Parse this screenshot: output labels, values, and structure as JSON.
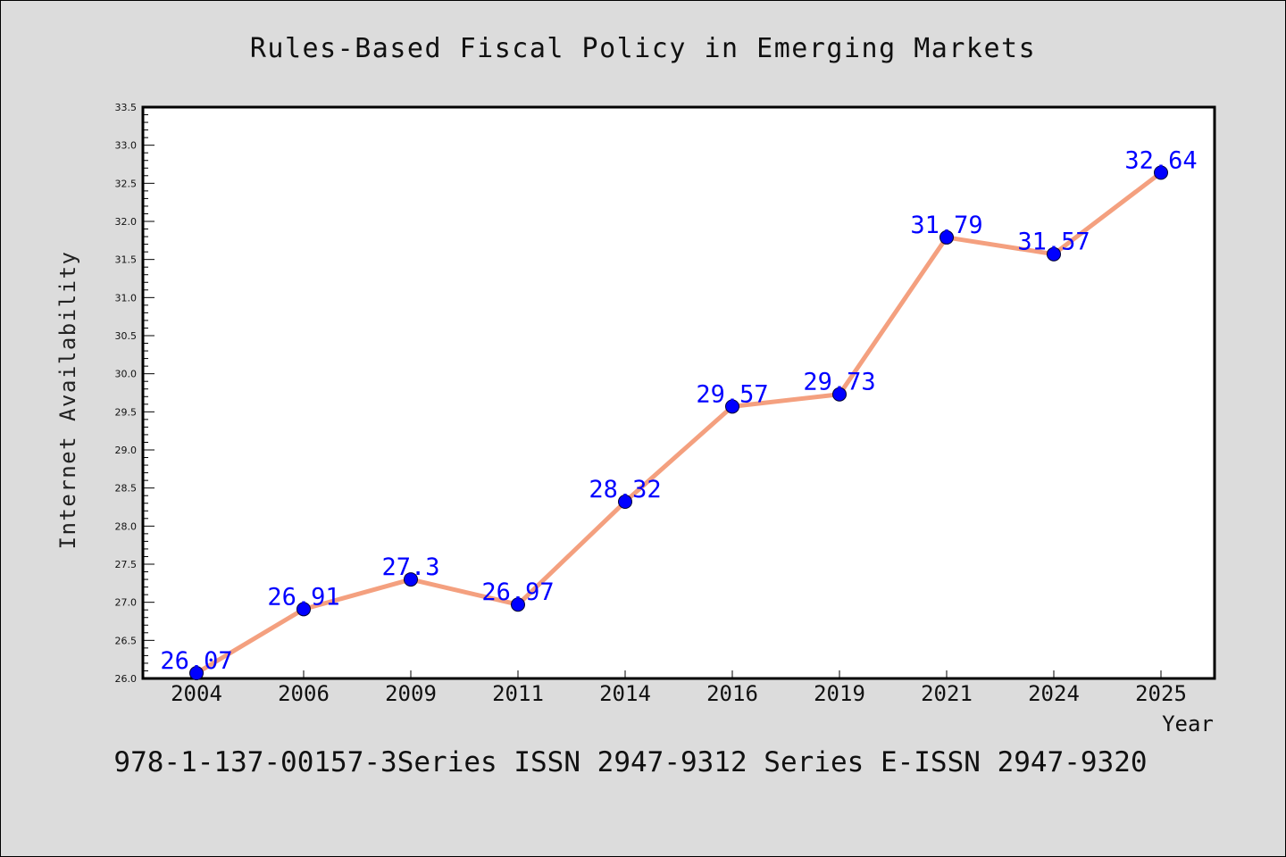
{
  "chart_data": {
    "type": "line",
    "title": "Rules-Based Fiscal Policy in Emerging Markets",
    "xlabel": "Year",
    "ylabel": "Internet Availability",
    "categories": [
      "2004",
      "2006",
      "2009",
      "2011",
      "2014",
      "2016",
      "2019",
      "2021",
      "2024",
      "2025"
    ],
    "series": [
      {
        "values": [
          26.07,
          26.91,
          27.3,
          26.97,
          28.32,
          29.57,
          29.73,
          31.79,
          31.57,
          32.64
        ],
        "labels": [
          "26.07",
          "26.91",
          "27.3",
          "26.97",
          "28.32",
          "29.57",
          "29.73",
          "31.79",
          "31.57",
          "32.64"
        ],
        "line_color": "#f4a07f",
        "marker_color": "#0000ff"
      }
    ],
    "ylim": [
      26.0,
      33.5
    ],
    "yticks": [
      "26.0",
      "26.5",
      "27.0",
      "27.5",
      "28.0",
      "28.5",
      "29.0",
      "29.5",
      "30.0",
      "30.5",
      "31.0",
      "31.5",
      "32.0",
      "32.5",
      "33.0",
      "33.5"
    ],
    "grid": false,
    "legend": "none"
  },
  "footer": "978-1-137-00157-3Series ISSN 2947-9312 Series E-ISSN 2947-9320",
  "colors": {
    "background": "#dcdcdc",
    "plot_background": "#ffffff",
    "label_color": "#0000ff"
  }
}
